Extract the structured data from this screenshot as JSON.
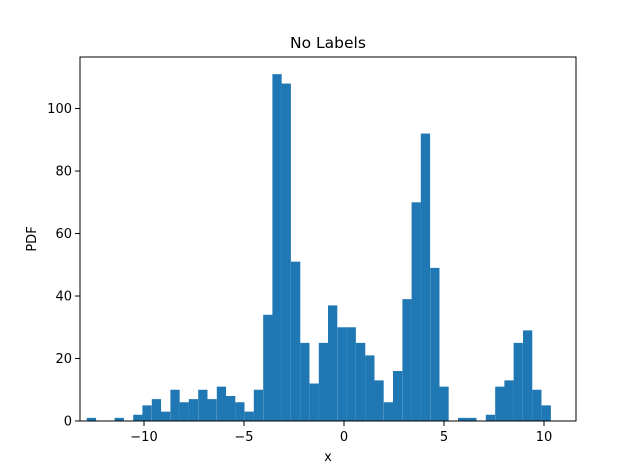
{
  "chart_data": {
    "type": "bar",
    "title": "No Labels",
    "xlabel": "x",
    "ylabel": "PDF",
    "xlim": [
      -13.2,
      11.6
    ],
    "ylim": [
      0,
      116.5
    ],
    "bar_color": "#1f77b4",
    "bin_width": 0.464,
    "bins": [
      {
        "x0": -12.86,
        "value": 1
      },
      {
        "x0": -12.4,
        "value": 0
      },
      {
        "x0": -11.93,
        "value": 0
      },
      {
        "x0": -11.47,
        "value": 1
      },
      {
        "x0": -11.0,
        "value": 0
      },
      {
        "x0": -10.54,
        "value": 2
      },
      {
        "x0": -10.08,
        "value": 5
      },
      {
        "x0": -9.61,
        "value": 7
      },
      {
        "x0": -9.15,
        "value": 3
      },
      {
        "x0": -8.68,
        "value": 10
      },
      {
        "x0": -8.22,
        "value": 6
      },
      {
        "x0": -7.76,
        "value": 7
      },
      {
        "x0": -7.29,
        "value": 10
      },
      {
        "x0": -6.83,
        "value": 7
      },
      {
        "x0": -6.36,
        "value": 11
      },
      {
        "x0": -5.9,
        "value": 8
      },
      {
        "x0": -5.44,
        "value": 6
      },
      {
        "x0": -4.97,
        "value": 3
      },
      {
        "x0": -4.51,
        "value": 10
      },
      {
        "x0": -4.04,
        "value": 34
      },
      {
        "x0": -3.58,
        "value": 111
      },
      {
        "x0": -3.12,
        "value": 108
      },
      {
        "x0": -2.65,
        "value": 51
      },
      {
        "x0": -2.19,
        "value": 25
      },
      {
        "x0": -1.72,
        "value": 12
      },
      {
        "x0": -1.26,
        "value": 25
      },
      {
        "x0": -0.8,
        "value": 37
      },
      {
        "x0": -0.33,
        "value": 30
      },
      {
        "x0": 0.13,
        "value": 30
      },
      {
        "x0": 0.6,
        "value": 25
      },
      {
        "x0": 1.06,
        "value": 21
      },
      {
        "x0": 1.52,
        "value": 13
      },
      {
        "x0": 1.99,
        "value": 6
      },
      {
        "x0": 2.45,
        "value": 16
      },
      {
        "x0": 2.92,
        "value": 39
      },
      {
        "x0": 3.38,
        "value": 70
      },
      {
        "x0": 3.84,
        "value": 92
      },
      {
        "x0": 4.31,
        "value": 49
      },
      {
        "x0": 4.77,
        "value": 11
      },
      {
        "x0": 5.24,
        "value": 0
      },
      {
        "x0": 5.7,
        "value": 1
      },
      {
        "x0": 6.16,
        "value": 1
      },
      {
        "x0": 6.63,
        "value": 0
      },
      {
        "x0": 7.09,
        "value": 2
      },
      {
        "x0": 7.56,
        "value": 11
      },
      {
        "x0": 8.02,
        "value": 13
      },
      {
        "x0": 8.48,
        "value": 25
      },
      {
        "x0": 8.95,
        "value": 29
      },
      {
        "x0": 9.41,
        "value": 10
      },
      {
        "x0": 9.88,
        "value": 5
      }
    ],
    "x_ticks": [
      {
        "value": -10,
        "label": "−10"
      },
      {
        "value": -5,
        "label": "−5"
      },
      {
        "value": 0,
        "label": "0"
      },
      {
        "value": 5,
        "label": "5"
      },
      {
        "value": 10,
        "label": "10"
      }
    ],
    "y_ticks": [
      {
        "value": 0,
        "label": "0"
      },
      {
        "value": 20,
        "label": "20"
      },
      {
        "value": 40,
        "label": "40"
      },
      {
        "value": 60,
        "label": "60"
      },
      {
        "value": 80,
        "label": "80"
      },
      {
        "value": 100,
        "label": "100"
      }
    ],
    "grid": false,
    "legend": "none"
  }
}
